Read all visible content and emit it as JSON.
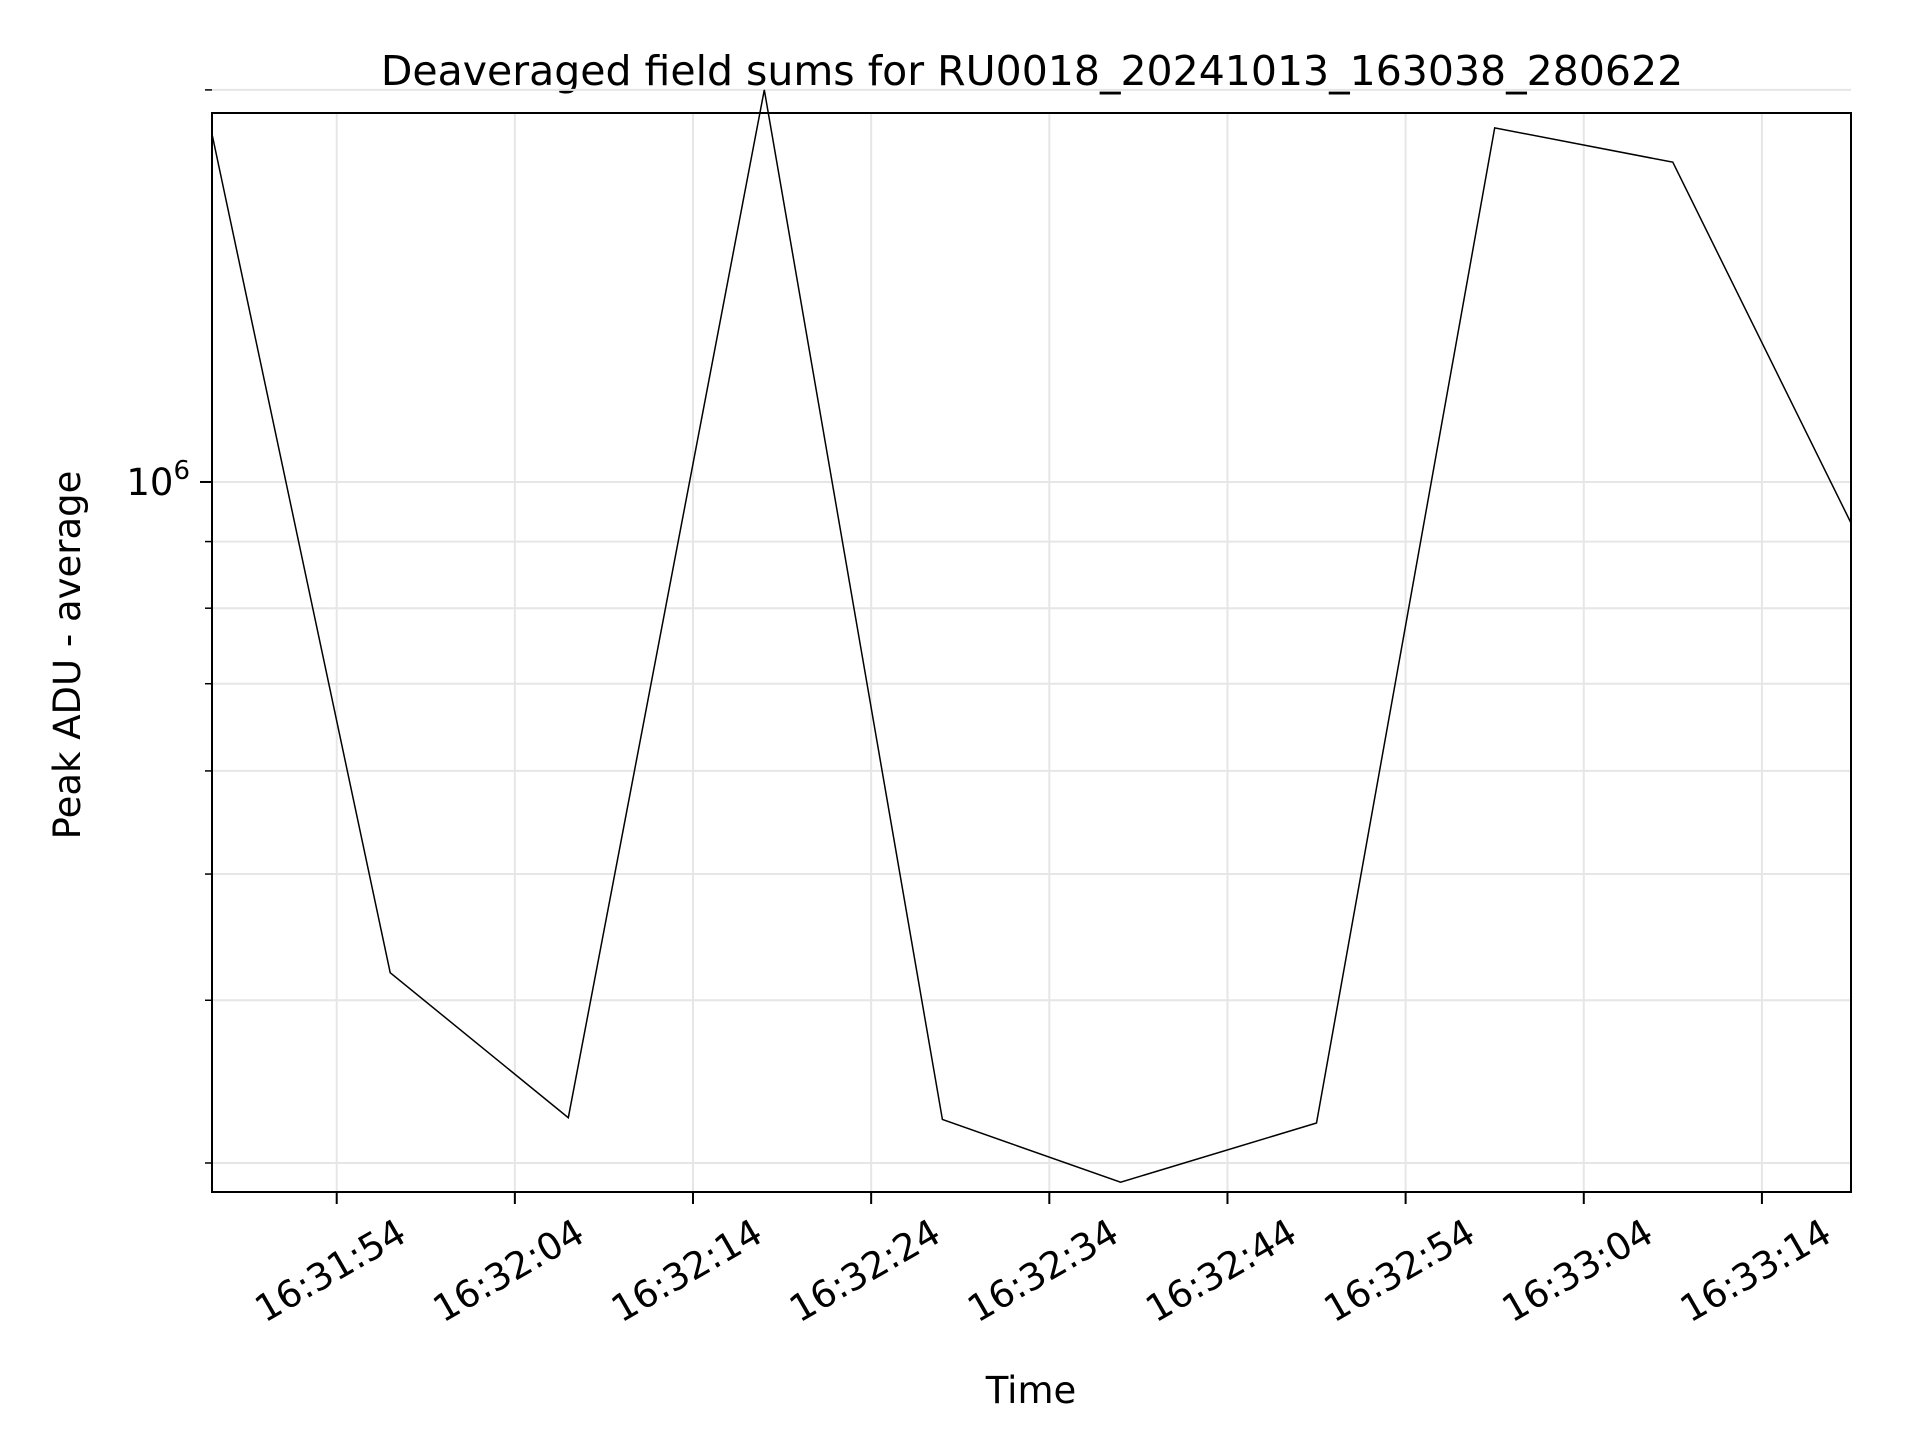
{
  "chart_data": {
    "type": "line",
    "title": "Deaveraged field sums for RU0018_20241013_163038_280622",
    "xlabel": "Time",
    "ylabel": "Peak ADU - average",
    "y_scale": "log",
    "grid": true,
    "legend": "none",
    "xlim": [
      "16:31:47",
      "16:33:19"
    ],
    "ylim": [
      285000,
      1920000
    ],
    "x_tick_labels": [
      "16:31:54",
      "16:32:04",
      "16:32:14",
      "16:32:24",
      "16:32:34",
      "16:32:44",
      "16:32:54",
      "16:33:04",
      "16:33:14"
    ],
    "y_tick_labels": [
      {
        "base": "10",
        "exp": "6",
        "value": 1000000
      }
    ],
    "y_minor_ticks": [
      300000,
      400000,
      500000,
      600000,
      700000,
      800000,
      900000,
      2000000
    ],
    "series": [
      {
        "x": [
          "16:31:47",
          "16:31:57",
          "16:32:07",
          "16:32:18",
          "16:32:28",
          "16:32:38",
          "16:32:49",
          "16:32:59",
          "16:33:09",
          "16:33:19"
        ],
        "y": [
          1850000,
          420000,
          325000,
          2000000,
          324000,
          290000,
          322000,
          1870000,
          1760000,
          930000
        ],
        "color": "#000000"
      }
    ]
  }
}
